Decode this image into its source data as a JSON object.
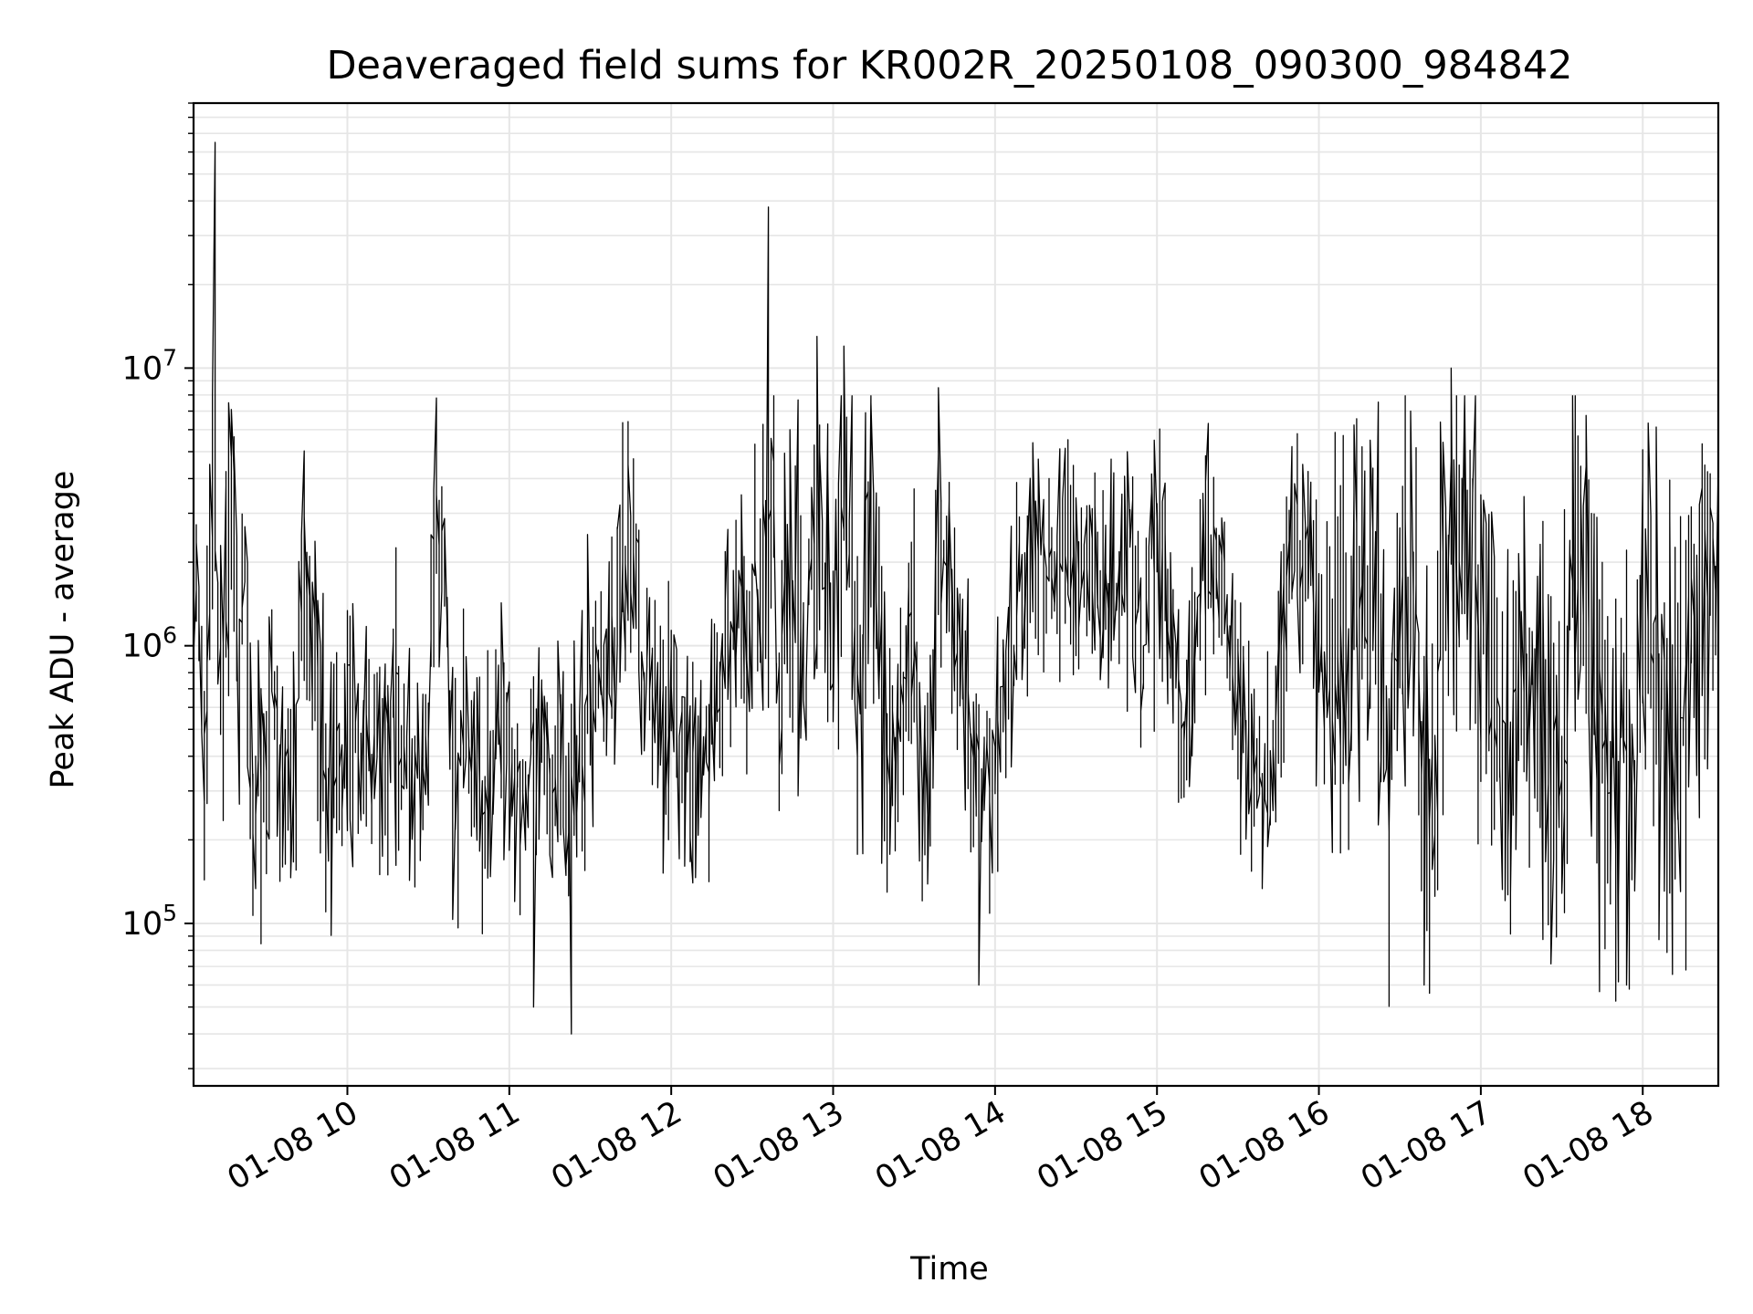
{
  "chart_data": {
    "type": "line",
    "title": "Deaveraged field sums for KR002R_20250108_090300_984842",
    "xlabel": "Time",
    "ylabel": "Peak ADU - average",
    "yscale": "log",
    "x_range": [
      "2025-01-08 09:03",
      "2025-01-08 18:28"
    ],
    "ylim": [
      26000,
      90000000
    ],
    "y_ticks": [
      {
        "value": 100000,
        "base": "10",
        "exp": "5"
      },
      {
        "value": 1000000,
        "base": "10",
        "exp": "6"
      },
      {
        "value": 10000000,
        "base": "10",
        "exp": "7"
      }
    ],
    "x_ticks": [
      {
        "value": "2025-01-08 10:00",
        "label": "01-08 10"
      },
      {
        "value": "2025-01-08 11:00",
        "label": "01-08 11"
      },
      {
        "value": "2025-01-08 12:00",
        "label": "01-08 12"
      },
      {
        "value": "2025-01-08 13:00",
        "label": "01-08 13"
      },
      {
        "value": "2025-01-08 14:00",
        "label": "01-08 14"
      },
      {
        "value": "2025-01-08 15:00",
        "label": "01-08 15"
      },
      {
        "value": "2025-01-08 16:00",
        "label": "01-08 16"
      },
      {
        "value": "2025-01-08 17:00",
        "label": "01-08 17"
      },
      {
        "value": "2025-01-08 18:00",
        "label": "01-08 18"
      }
    ],
    "grid": true,
    "line_color": "#000000",
    "grid_color": "#e6e6e6",
    "series": [
      {
        "x": [
          "2025-01-08 09:03",
          "2025-01-08 09:05",
          "2025-01-08 09:07",
          "2025-01-08 09:09",
          "2025-01-08 09:10",
          "2025-01-08 09:11",
          "2025-01-08 09:12",
          "2025-01-08 09:14",
          "2025-01-08 09:17",
          "2025-01-08 09:20",
          "2025-01-08 09:22",
          "2025-01-08 09:25",
          "2025-01-08 09:28",
          "2025-01-08 09:32",
          "2025-01-08 09:36",
          "2025-01-08 09:40",
          "2025-01-08 09:45",
          "2025-01-08 09:50",
          "2025-01-08 09:55",
          "2025-01-08 10:00",
          "2025-01-08 10:10",
          "2025-01-08 10:20",
          "2025-01-08 10:30",
          "2025-01-08 10:33",
          "2025-01-08 10:40",
          "2025-01-08 10:45",
          "2025-01-08 10:50",
          "2025-01-08 11:00",
          "2025-01-08 11:10",
          "2025-01-08 11:20",
          "2025-01-08 11:23",
          "2025-01-08 11:30",
          "2025-01-08 11:40",
          "2025-01-08 11:45",
          "2025-01-08 11:50",
          "2025-01-08 12:00",
          "2025-01-08 12:10",
          "2025-01-08 12:18",
          "2025-01-08 12:25",
          "2025-01-08 12:30",
          "2025-01-08 12:36",
          "2025-01-08 12:40",
          "2025-01-08 12:45",
          "2025-01-08 12:50",
          "2025-01-08 12:55",
          "2025-01-08 13:00",
          "2025-01-08 13:05",
          "2025-01-08 13:10",
          "2025-01-08 13:15",
          "2025-01-08 13:20",
          "2025-01-08 13:30",
          "2025-01-08 13:35",
          "2025-01-08 13:40",
          "2025-01-08 13:45",
          "2025-01-08 13:50",
          "2025-01-08 13:55",
          "2025-01-08 14:00",
          "2025-01-08 14:10",
          "2025-01-08 14:20",
          "2025-01-08 14:30",
          "2025-01-08 14:40",
          "2025-01-08 14:50",
          "2025-01-08 14:55",
          "2025-01-08 15:00",
          "2025-01-08 15:10",
          "2025-01-08 15:20",
          "2025-01-08 15:30",
          "2025-01-08 15:40",
          "2025-01-08 15:45",
          "2025-01-08 15:55",
          "2025-01-08 16:00",
          "2025-01-08 16:10",
          "2025-01-08 16:20",
          "2025-01-08 16:25",
          "2025-01-08 16:35",
          "2025-01-08 16:40",
          "2025-01-08 16:50",
          "2025-01-08 17:00",
          "2025-01-08 17:10",
          "2025-01-08 17:20",
          "2025-01-08 17:30",
          "2025-01-08 17:35",
          "2025-01-08 17:45",
          "2025-01-08 17:55",
          "2025-01-08 18:00",
          "2025-01-08 18:10",
          "2025-01-08 18:20",
          "2025-01-08 18:28"
        ],
        "values": [
          600000,
          2000000,
          350000,
          800000,
          4500000,
          65000000,
          1000000,
          700000,
          7500000,
          900000,
          1800000,
          400000,
          120000,
          700000,
          300000,
          250000,
          2600000,
          600000,
          180000,
          500000,
          350000,
          600000,
          200000,
          7800000,
          300000,
          500000,
          250000,
          600000,
          50000,
          800000,
          40000,
          700000,
          1000000,
          4500000,
          900000,
          550000,
          300000,
          650000,
          1500000,
          900000,
          38000000,
          500000,
          6000000,
          400000,
          13000000,
          800000,
          12000000,
          400000,
          7500000,
          300000,
          1200000,
          80000,
          8500000,
          1000000,
          500000,
          60000,
          400000,
          1800000,
          2500000,
          3000000,
          1500000,
          5000000,
          600000,
          5500000,
          450000,
          3500000,
          700000,
          200000,
          600000,
          4500000,
          1000000,
          700000,
          5500000,
          300000,
          7000000,
          60000,
          10000000,
          1000000,
          400000,
          800000,
          300000,
          3500000,
          500000,
          60000,
          1500000,
          500000,
          900000,
          4500000
        ]
      }
    ]
  }
}
